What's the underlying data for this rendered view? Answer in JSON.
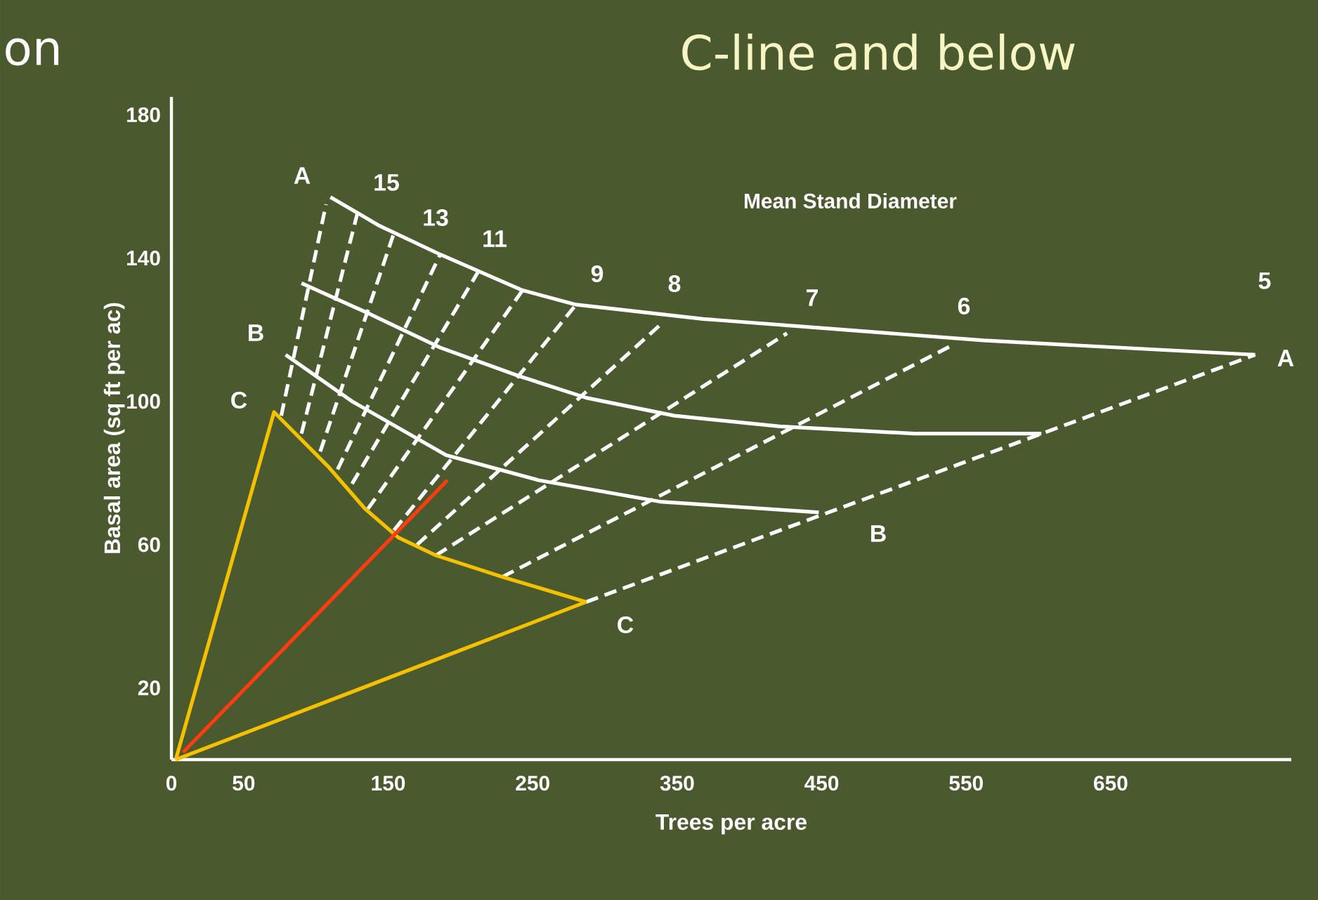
{
  "chart_data": {
    "type": "line",
    "title": "C-line and below",
    "xlabel": "Trees per acre",
    "ylabel": "Basal area (sq ft per ac)",
    "xlim": [
      0,
      775
    ],
    "ylim": [
      0,
      185
    ],
    "xticks": [
      0,
      50,
      150,
      250,
      350,
      450,
      550,
      650
    ],
    "yticks": [
      20,
      60,
      100,
      140,
      180
    ],
    "marker": "none",
    "series": [
      {
        "color": "#ffffff",
        "line_style": "solid",
        "x": [
          110,
          144,
          186,
          243,
          280,
          368,
          465,
          562,
          750
        ],
        "values": [
          157,
          149,
          141,
          131,
          127,
          123,
          120,
          117,
          113
        ]
      },
      {
        "color": "#ffffff",
        "line_style": "solid",
        "x": [
          90,
          134,
          186,
          241,
          287,
          348,
          421,
          514,
          602
        ],
        "values": [
          133,
          125,
          115,
          107,
          101,
          96,
          93,
          91,
          91
        ]
      },
      {
        "color": "#ffffff",
        "line_style": "solid",
        "x": [
          79,
          125,
          190,
          254,
          338,
          448
        ],
        "values": [
          113,
          100,
          85,
          78,
          72,
          69
        ]
      },
      {
        "color": "#ffffff",
        "line_style": "dashed",
        "x": [
          76,
          107
        ],
        "values": [
          96,
          155
        ]
      },
      {
        "color": "#ffffff",
        "line_style": "dashed",
        "x": [
          90,
          129
        ],
        "values": [
          91,
          153
        ]
      },
      {
        "color": "#ffffff",
        "line_style": "dashed",
        "x": [
          103,
          154
        ],
        "values": [
          86,
          147
        ]
      },
      {
        "color": "#ffffff",
        "line_style": "dashed",
        "x": [
          115,
          186
        ],
        "values": [
          81,
          141
        ]
      },
      {
        "color": "#ffffff",
        "line_style": "dashed",
        "x": [
          125,
          212
        ],
        "values": [
          77,
          136
        ]
      },
      {
        "color": "#ffffff",
        "line_style": "dashed",
        "x": [
          136,
          243
        ],
        "values": [
          70,
          131
        ]
      },
      {
        "color": "#ffffff",
        "line_style": "dashed",
        "x": [
          154,
          280
        ],
        "values": [
          64,
          127
        ]
      },
      {
        "color": "#ffffff",
        "line_style": "dashed",
        "x": [
          170,
          340
        ],
        "values": [
          60,
          122
        ]
      },
      {
        "color": "#ffffff",
        "line_style": "dashed",
        "x": [
          183,
          426
        ],
        "values": [
          57,
          119
        ]
      },
      {
        "color": "#ffffff",
        "line_style": "dashed",
        "x": [
          229,
          542
        ],
        "values": [
          51,
          116
        ]
      },
      {
        "color": "#ffffff",
        "line_style": "dashed",
        "x": [
          287,
          750
        ],
        "values": [
          44,
          113
        ]
      },
      {
        "color": "#f5c000",
        "line_style": "solid",
        "x": [
          3,
          71,
          108,
          134,
          157,
          183,
          229,
          287
        ],
        "values": [
          0,
          97,
          82,
          70,
          62,
          57,
          51,
          44
        ]
      },
      {
        "color": "#f5c000",
        "line_style": "solid",
        "x": [
          3,
          287
        ],
        "values": [
          0,
          44
        ]
      },
      {
        "color": "#ff3c0f",
        "line_style": "solid",
        "x": [
          8,
          191
        ],
        "values": [
          2,
          78
        ]
      }
    ],
    "annotations": [
      "on",
      "Mean Stand Diameter",
      "A",
      "B",
      "C",
      "A",
      "B",
      "C",
      "15",
      "13",
      "11",
      "9",
      "8",
      "7",
      "6",
      "5"
    ]
  }
}
